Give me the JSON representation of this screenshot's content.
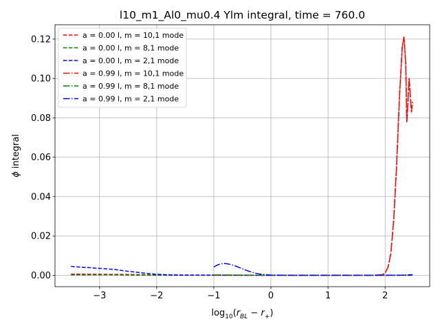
{
  "chart_data": {
    "type": "line",
    "title": "l10_m1_Al0_mu0.4 Ylm integral, time = 760.0",
    "xlabel": "log₁₀(r_BL − r₊)",
    "ylabel": "ϕ integral",
    "xlim": [
      -3.78,
      2.78
    ],
    "ylim": [
      -0.0058,
      0.1273
    ],
    "xticks": [
      -3,
      -2,
      -1,
      0,
      1,
      2
    ],
    "xtick_labels": [
      "−3",
      "−2",
      "−1",
      "0",
      "1",
      "2"
    ],
    "yticks": [
      0.0,
      0.02,
      0.04,
      0.06,
      0.08,
      0.1,
      0.12
    ],
    "ytick_labels": [
      "0.00",
      "0.02",
      "0.04",
      "0.06",
      "0.08",
      "0.10",
      "0.12"
    ],
    "grid": true,
    "legend_position": "top-left",
    "series": [
      {
        "name": "a = 0.00 l, m = 10,1 mode",
        "legend_parts": [
          "a = 0.00",
          "l, m =",
          "10,1 mode"
        ],
        "color": "#ff0000",
        "style": "dashed",
        "x": [
          -3.5,
          -3.0,
          -2.5,
          -2.0,
          -1.5,
          -1.0,
          -0.5,
          0.0,
          0.5,
          1.0,
          1.5,
          1.8,
          1.95,
          2.0,
          2.05,
          2.1,
          2.15,
          2.2,
          2.25,
          2.3,
          2.33,
          2.36,
          2.38,
          2.4,
          2.42,
          2.44,
          2.46,
          2.48
        ],
        "y": [
          0.0006,
          0.0005,
          0.0004,
          0.0002,
          0.0001,
          0.0,
          0.0,
          0.0,
          0.0,
          0.0,
          0.0,
          0.0,
          0.0003,
          0.0012,
          0.004,
          0.011,
          0.028,
          0.055,
          0.09,
          0.116,
          0.121,
          0.108,
          0.078,
          0.088,
          0.1,
          0.092,
          0.083,
          0.088
        ]
      },
      {
        "name": "a = 0.00 l, m = 8,1 mode",
        "legend_parts": [
          "a = 0.00",
          "l, m =",
          "8,1 mode"
        ],
        "color": "#008000",
        "style": "dashed",
        "x": [
          -3.5,
          -3.0,
          -2.5,
          -2.0,
          -1.0,
          0.0,
          1.0,
          2.0,
          2.48
        ],
        "y": [
          0.0002,
          0.0002,
          0.0001,
          0.0,
          0.0,
          0.0,
          0.0,
          0.0,
          0.0
        ]
      },
      {
        "name": "a = 0.00 l, m = 2,1 mode",
        "legend_parts": [
          "a = 0.00",
          "l, m =",
          "2,1 mode"
        ],
        "color": "#0000ff",
        "style": "dashed",
        "x": [
          -3.5,
          -3.25,
          -3.0,
          -2.75,
          -2.5,
          -2.25,
          -2.0,
          -1.75,
          -1.5,
          -1.25,
          -1.0,
          -0.5,
          0.0,
          1.0,
          2.0,
          2.48
        ],
        "y": [
          0.0045,
          0.004,
          0.0035,
          0.003,
          0.002,
          0.0012,
          0.0005,
          0.0002,
          0.0001,
          0.0001,
          0.0001,
          0.0,
          0.0,
          0.0,
          0.0,
          0.0
        ]
      },
      {
        "name": "a = 0.99 l, m = 10,1 mode",
        "legend_parts": [
          "a = 0.99",
          "l, m =",
          "10,1 mode"
        ],
        "color": "#ff0000",
        "style": "dashdot",
        "x": [
          -1.0,
          -0.5,
          0.0,
          0.5,
          1.0,
          1.5,
          1.8,
          1.95,
          2.0,
          2.05,
          2.1,
          2.15,
          2.2,
          2.25,
          2.3,
          2.33,
          2.36,
          2.38,
          2.4,
          2.42,
          2.44,
          2.46,
          2.48
        ],
        "y": [
          0.0,
          0.0,
          0.0,
          0.0,
          0.0,
          0.0,
          0.0,
          0.0003,
          0.0012,
          0.004,
          0.011,
          0.028,
          0.055,
          0.09,
          0.116,
          0.121,
          0.108,
          0.078,
          0.088,
          0.1,
          0.092,
          0.083,
          0.088
        ]
      },
      {
        "name": "a = 0.99 l, m = 8,1 mode",
        "legend_parts": [
          "a = 0.99",
          "l, m =",
          "8,1 mode"
        ],
        "color": "#008000",
        "style": "dashdot",
        "x": [
          -1.0,
          -0.5,
          0.0,
          1.0,
          2.0,
          2.48
        ],
        "y": [
          0.0002,
          0.0001,
          0.0,
          0.0,
          0.0,
          0.0
        ]
      },
      {
        "name": "a = 0.99 l, m = 2,1 mode",
        "legend_parts": [
          "a = 0.99",
          "l, m =",
          "2,1 mode"
        ],
        "color": "#0000ff",
        "style": "dashdot",
        "x": [
          -1.0,
          -0.95,
          -0.9,
          -0.85,
          -0.8,
          -0.7,
          -0.6,
          -0.5,
          -0.4,
          -0.3,
          -0.2,
          0.0,
          0.5,
          1.0,
          2.0,
          2.3,
          2.48
        ],
        "y": [
          0.0042,
          0.005,
          0.0056,
          0.0059,
          0.006,
          0.0055,
          0.0045,
          0.0033,
          0.0022,
          0.0013,
          0.0006,
          0.0001,
          0.0,
          0.0,
          0.0,
          0.0001,
          0.0003
        ]
      }
    ]
  }
}
